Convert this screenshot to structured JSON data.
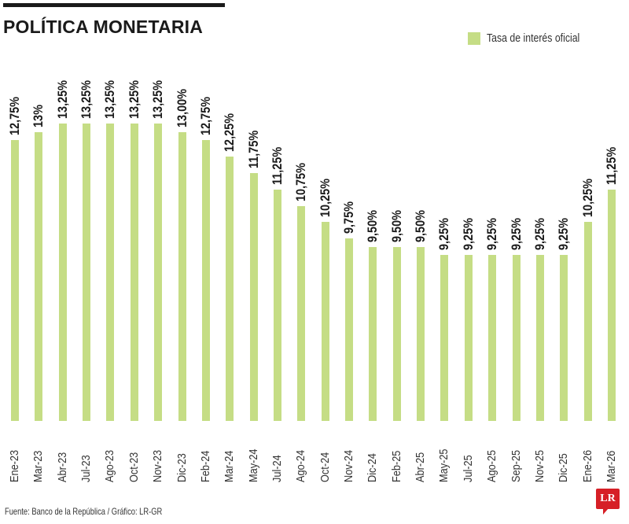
{
  "header": {
    "title": "POLÍTICA MONETARIA"
  },
  "legend": {
    "label": "Tasa de interés oficial",
    "color": "#c5dd85"
  },
  "footer": {
    "source": "Fuente: Banco de la República / Gráfico: LR-GR",
    "logo": "LR"
  },
  "colors": {
    "bar": "#c5dd85",
    "logo": "#d61f26",
    "text": "#1a1a1a"
  },
  "chart_data": {
    "type": "bar",
    "title": "POLÍTICA MONETARIA",
    "xlabel": "",
    "ylabel": "",
    "legend": [
      "Tasa de interés oficial"
    ],
    "legend_position": "top-right",
    "grid": false,
    "categories": [
      "Ene-23",
      "Mar-23",
      "Abr-23",
      "Jul-23",
      "Ago-23",
      "Oct-23",
      "Nov-23",
      "Dic-23",
      "Feb-24",
      "Mar-24",
      "May-24",
      "Jul-24",
      "Ago-24",
      "Oct-24",
      "Nov-24",
      "Dic-24",
      "Feb-25",
      "Abr-25",
      "May-25",
      "Jul-25",
      "Ago-25",
      "Sep-25",
      "Nov-25",
      "Dic-25",
      "Ene-26",
      "Mar-26"
    ],
    "values": [
      12.75,
      13.0,
      13.25,
      13.25,
      13.25,
      13.25,
      13.25,
      13.0,
      12.75,
      12.25,
      11.75,
      11.25,
      10.75,
      10.25,
      9.75,
      9.5,
      9.5,
      9.5,
      9.25,
      9.25,
      9.25,
      9.25,
      9.25,
      9.25,
      10.25,
      11.25
    ],
    "labels": [
      "12,75%",
      "13%",
      "13,25%",
      "13,25%",
      "13,25%",
      "13,25%",
      "13,25%",
      "13,00%",
      "12,75%",
      "12,25%",
      "11,75%",
      "11,25%",
      "10,75%",
      "10,25%",
      "9,75%",
      "9,50%",
      "9,50%",
      "9,50%",
      "9,25%",
      "9,25%",
      "9,25%",
      "9,25%",
      "9,25%",
      "9,25%",
      "10,25%",
      "11,25%"
    ],
    "series": [
      {
        "name": "Tasa de interés oficial",
        "values": [
          12.75,
          13.0,
          13.25,
          13.25,
          13.25,
          13.25,
          13.25,
          13.0,
          12.75,
          12.25,
          11.75,
          11.25,
          10.75,
          10.25,
          9.75,
          9.5,
          9.5,
          9.5,
          9.25,
          9.25,
          9.25,
          9.25,
          9.25,
          9.25,
          10.25,
          11.25
        ]
      }
    ],
    "ylim": [
      4.2,
      14
    ]
  }
}
